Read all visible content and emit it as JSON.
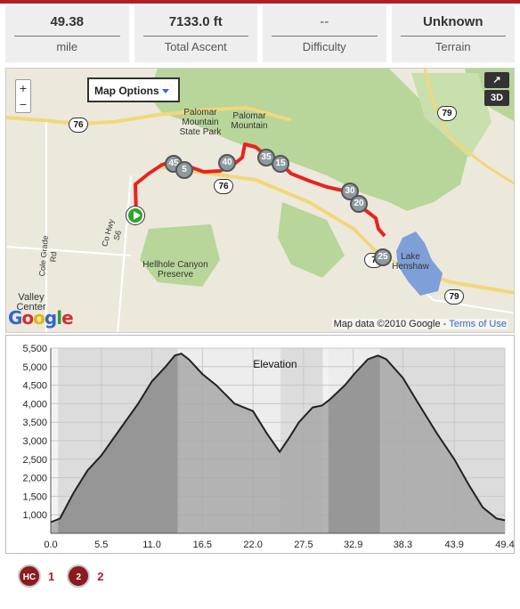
{
  "stats": [
    {
      "value": "49.38",
      "label": "mile"
    },
    {
      "value": "7133.0 ft",
      "label": "Total Ascent"
    },
    {
      "value": "--",
      "label": "Difficulty"
    },
    {
      "value": "Unknown",
      "label": "Terrain"
    }
  ],
  "map": {
    "options_label": "Map Options",
    "zoom_in": "+",
    "zoom_out": "−",
    "expand_label": "↗",
    "view_3d_label": "3D",
    "attribution": "Map data ©2010 Google - ",
    "terms_link": "Terms of Use",
    "logo": "Google",
    "places": [
      {
        "name": "Palomar Mountain State Park"
      },
      {
        "name": "Palomar Mountain"
      },
      {
        "name": "Hellhole Canyon Preserve"
      },
      {
        "name": "Lake Henshaw"
      },
      {
        "name": "Valley Center"
      },
      {
        "name": "Cole Grade Rd"
      },
      {
        "name": "Co Hwy S6"
      }
    ],
    "shields": [
      "76",
      "76",
      "79",
      "79",
      "7"
    ],
    "markers": [
      "45",
      "5",
      "40",
      "35",
      "15",
      "30",
      "20",
      "25"
    ],
    "colors": {
      "route": "#e8231e",
      "forest": "#b8d59a",
      "road": "#f2d77a",
      "lake": "#7f9fd8"
    }
  },
  "chart_data": {
    "type": "area",
    "title": "Elevation",
    "xlabel": "",
    "ylabel": "",
    "xlim": [
      0,
      49.4
    ],
    "ylim": [
      500,
      5500
    ],
    "x_ticks": [
      "0.0",
      "5.5",
      "11.0",
      "16.5",
      "22.0",
      "27.5",
      "32.9",
      "38.3",
      "43.9",
      "49.4"
    ],
    "y_ticks": [
      "1,000",
      "1,500",
      "2,000",
      "2,500",
      "3,000",
      "3,500",
      "4,000",
      "4,500",
      "5,000",
      "5,500"
    ],
    "x": [
      0,
      1.0,
      2.5,
      4.0,
      5.5,
      7.5,
      9.5,
      11.0,
      12.5,
      13.5,
      14.2,
      15.0,
      16.5,
      18.0,
      20.0,
      22.0,
      23.5,
      24.9,
      26.0,
      27.0,
      28.5,
      29.5,
      30.3,
      32.0,
      33.0,
      34.5,
      35.6,
      36.5,
      38.3,
      40.0,
      42.0,
      43.9,
      45.5,
      47.0,
      48.5,
      49.4
    ],
    "y": [
      800,
      900,
      1600,
      2200,
      2600,
      3300,
      4000,
      4600,
      5000,
      5300,
      5350,
      5200,
      4800,
      4500,
      4000,
      3800,
      3200,
      2700,
      3100,
      3500,
      3900,
      3950,
      4100,
      4500,
      4800,
      5200,
      5300,
      5200,
      4700,
      4000,
      3200,
      2500,
      1800,
      1200,
      900,
      850
    ],
    "shaded_ranges": [
      [
        0.8,
        13.8
      ],
      [
        13.8,
        25.0
      ],
      [
        25.0,
        29.6
      ],
      [
        30.2,
        35.8
      ],
      [
        35.8,
        49.4
      ]
    ],
    "colors": {
      "area": "#a8a8a8",
      "shade_dark": "#8c8c8c",
      "shade_light": "#d9d9d9",
      "line": "#222222"
    }
  },
  "legend": [
    {
      "icon": "hc-climb-icon",
      "text": "HC",
      "count": "1"
    },
    {
      "icon": "cat2-climb-icon",
      "text": "2",
      "count": "2"
    }
  ]
}
